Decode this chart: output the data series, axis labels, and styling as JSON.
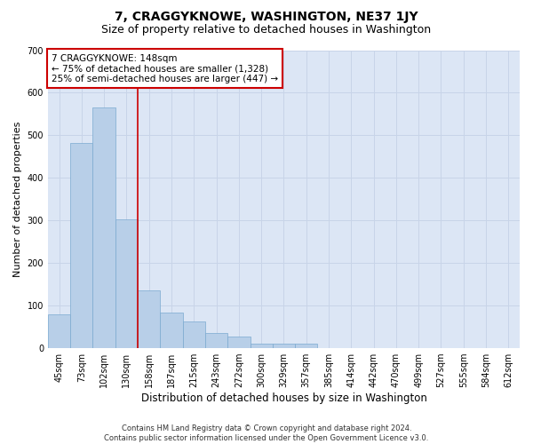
{
  "title": "7, CRAGGYKNOWE, WASHINGTON, NE37 1JY",
  "subtitle": "Size of property relative to detached houses in Washington",
  "xlabel": "Distribution of detached houses by size in Washington",
  "ylabel": "Number of detached properties",
  "footer_line1": "Contains HM Land Registry data © Crown copyright and database right 2024.",
  "footer_line2": "Contains public sector information licensed under the Open Government Licence v3.0.",
  "categories": [
    "45sqm",
    "73sqm",
    "102sqm",
    "130sqm",
    "158sqm",
    "187sqm",
    "215sqm",
    "243sqm",
    "272sqm",
    "300sqm",
    "329sqm",
    "357sqm",
    "385sqm",
    "414sqm",
    "442sqm",
    "470sqm",
    "499sqm",
    "527sqm",
    "555sqm",
    "584sqm",
    "612sqm"
  ],
  "values": [
    80,
    482,
    565,
    302,
    135,
    83,
    62,
    35,
    28,
    10,
    10,
    10,
    0,
    0,
    0,
    0,
    0,
    0,
    0,
    0,
    0
  ],
  "bar_color": "#b8cfe8",
  "bar_edge_color": "#7baad0",
  "grid_color": "#c8d4e8",
  "background_color": "#dce6f5",
  "vline_color": "#cc0000",
  "vline_x": 3.5,
  "annotation_text": "7 CRAGGYKNOWE: 148sqm\n← 75% of detached houses are smaller (1,328)\n25% of semi-detached houses are larger (447) →",
  "annotation_fontsize": 7.5,
  "annotation_box_color": "#cc0000",
  "title_fontsize": 10,
  "subtitle_fontsize": 9,
  "xlabel_fontsize": 8.5,
  "ylabel_fontsize": 8,
  "tick_fontsize": 7,
  "footer_fontsize": 6,
  "ylim": [
    0,
    700
  ],
  "yticks": [
    0,
    100,
    200,
    300,
    400,
    500,
    600,
    700
  ]
}
